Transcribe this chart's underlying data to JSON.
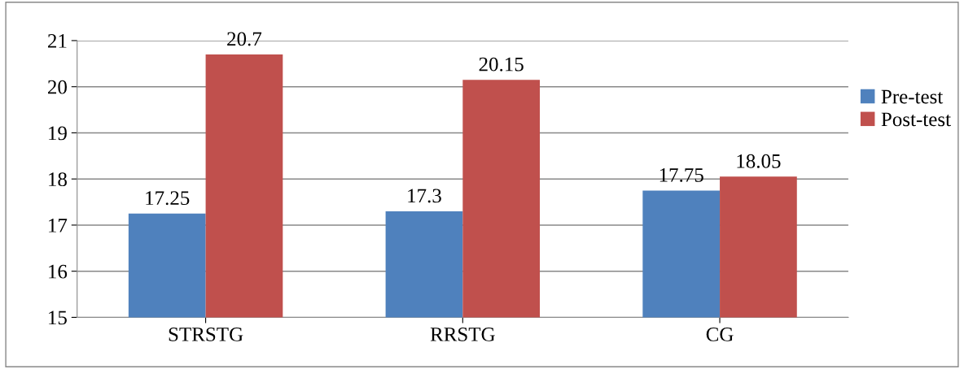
{
  "chart_data": {
    "type": "bar",
    "categories": [
      "STRSTG",
      "RRSTG",
      "CG"
    ],
    "series": [
      {
        "name": "Pre-test",
        "color": "#4f81bd",
        "values": [
          17.25,
          17.3,
          17.75
        ]
      },
      {
        "name": "Post-test",
        "color": "#c0504d",
        "values": [
          20.7,
          20.15,
          18.05
        ]
      }
    ],
    "ylim": [
      15,
      21
    ],
    "yticks": [
      15,
      16,
      17,
      18,
      19,
      20,
      21
    ],
    "grid": "y",
    "legend": "right",
    "data_labels": true
  }
}
